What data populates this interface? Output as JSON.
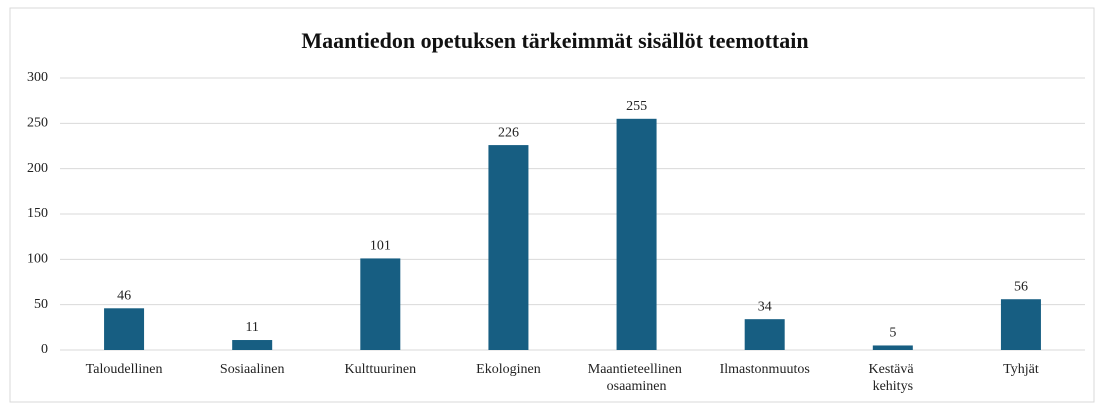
{
  "chart_data": {
    "type": "bar",
    "title": "Maantiedon opetuksen tärkeimmät sisällöt teemottain",
    "categories": [
      "Taloudellinen",
      "Sosiaalinen",
      "Kulttuurinen",
      "Ekologinen",
      "Maantieteellinen osaaminen",
      "Ilmastonmuutos",
      "Kestävä kehitys",
      "Tyhjät"
    ],
    "values": [
      46,
      11,
      101,
      226,
      255,
      34,
      5,
      56
    ],
    "color": "#175e82",
    "ylim": [
      0,
      300
    ],
    "yticks": [
      0,
      50,
      100,
      150,
      200,
      250,
      300
    ],
    "grid": true
  }
}
